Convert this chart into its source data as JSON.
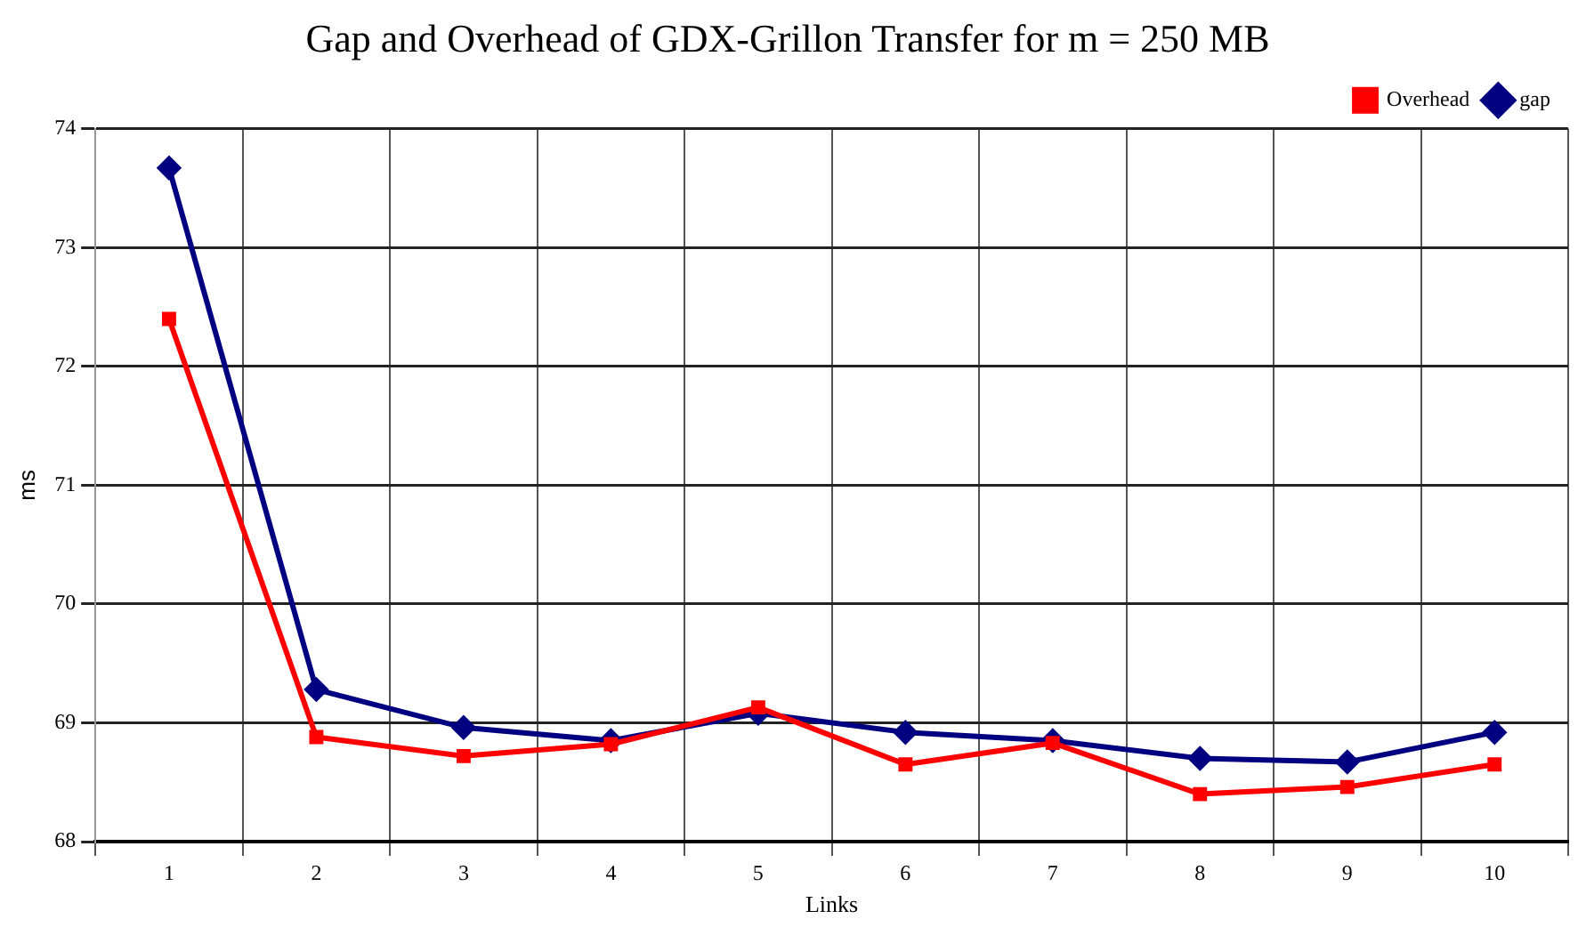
{
  "chart_data": {
    "type": "line",
    "title": "Gap and Overhead of GDX-Grillon Transfer for m = 250 MB",
    "xlabel": "Links",
    "ylabel": "ms",
    "categories": [
      "1",
      "2",
      "3",
      "4",
      "5",
      "6",
      "7",
      "8",
      "9",
      "10"
    ],
    "series": [
      {
        "name": "gap",
        "color": "#000080",
        "marker": "diamond",
        "values": [
          73.67,
          69.28,
          68.96,
          68.85,
          69.08,
          68.92,
          68.85,
          68.7,
          68.67,
          68.92
        ]
      },
      {
        "name": "Overhead",
        "color": "#ff0000",
        "marker": "square",
        "values": [
          72.4,
          68.88,
          68.72,
          68.82,
          69.13,
          68.65,
          68.83,
          68.4,
          68.46,
          68.65
        ]
      }
    ],
    "ylim": [
      68,
      74
    ],
    "yticks": [
      68,
      69,
      70,
      71,
      72,
      73,
      74
    ],
    "grid": true,
    "legend": "top right",
    "line_style": "solid"
  }
}
